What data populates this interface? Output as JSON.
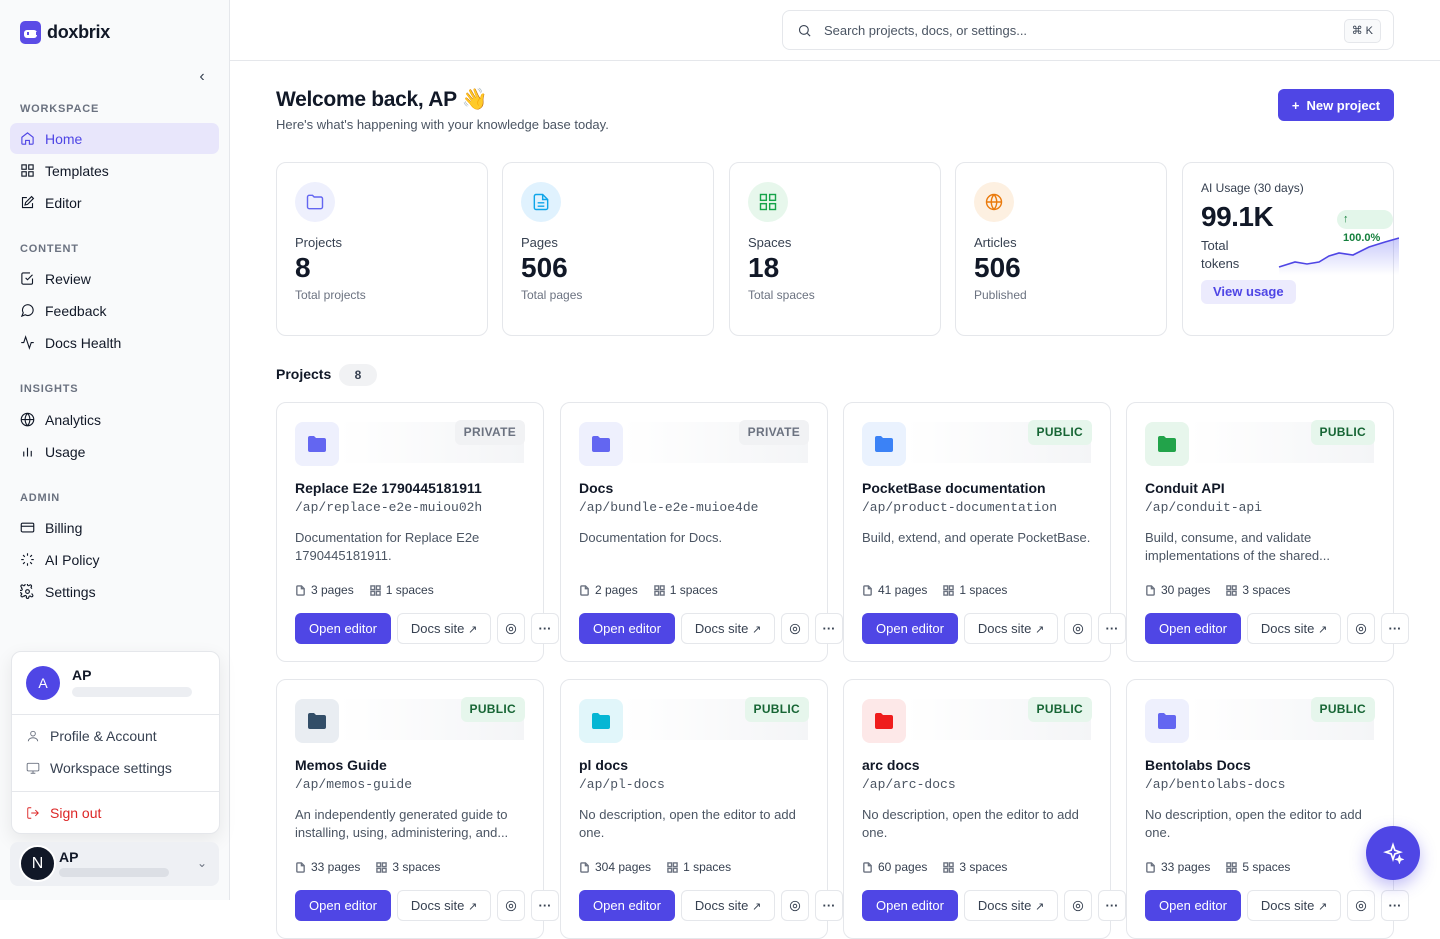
{
  "app": {
    "name": "doxbrix"
  },
  "sidebar": {
    "sections": [
      {
        "label": "WORKSPACE"
      },
      {
        "label": "CONTENT"
      },
      {
        "label": "INSIGHTS"
      },
      {
        "label": "ADMIN"
      }
    ],
    "items": [
      {
        "label": "Home",
        "icon": "home-icon",
        "active": true
      },
      {
        "label": "Templates",
        "icon": "grid-icon"
      },
      {
        "label": "Editor",
        "icon": "edit-icon"
      },
      {
        "label": "Review",
        "icon": "check-square-icon"
      },
      {
        "label": "Feedback",
        "icon": "message-circle-icon"
      },
      {
        "label": "Docs Health",
        "icon": "activity-icon"
      },
      {
        "label": "Analytics",
        "icon": "globe-icon"
      },
      {
        "label": "Usage",
        "icon": "bar-chart-icon"
      },
      {
        "label": "Billing",
        "icon": "credit-card-icon"
      },
      {
        "label": "AI Policy",
        "icon": "sparkle-icon"
      },
      {
        "label": "Settings",
        "icon": "gear-icon"
      }
    ]
  },
  "user_menu": {
    "avatar_letter": "A",
    "name": "AP",
    "items": [
      {
        "label": "Profile & Account",
        "icon": "user-icon"
      },
      {
        "label": "Workspace settings",
        "icon": "monitor-icon"
      }
    ],
    "signout": "Sign out"
  },
  "user_bar": {
    "avatar_letter": "N",
    "name": "AP"
  },
  "search": {
    "placeholder": "Search projects, docs, or settings...",
    "shortcut": "⌘ K"
  },
  "header": {
    "title": "Welcome back, AP 👋",
    "subtitle": "Here's what's happening with your knowledge base today.",
    "new_project": "New project"
  },
  "stats": [
    {
      "label": "Projects",
      "value": "8",
      "desc": "Total projects",
      "color": "#6366f1",
      "bg": "#eef0fd",
      "icon": "folder-icon"
    },
    {
      "label": "Pages",
      "value": "506",
      "desc": "Total pages",
      "color": "#0ea5e9",
      "bg": "#e0f2fe",
      "icon": "file-text-icon"
    },
    {
      "label": "Spaces",
      "value": "18",
      "desc": "Total spaces",
      "color": "#16a34a",
      "bg": "#e7f7ec",
      "icon": "grid-icon"
    },
    {
      "label": "Articles",
      "value": "506",
      "desc": "Published",
      "color": "#ea7a0c",
      "bg": "#fdf0e1",
      "icon": "globe-icon"
    }
  ],
  "ai_usage": {
    "title": "AI Usage (30 days)",
    "value": "99.1K",
    "label": "Total tokens",
    "change": "100.0%",
    "action": "View usage"
  },
  "projects": {
    "title": "Projects",
    "count": "8",
    "open_label": "Open editor",
    "docs_label": "Docs site",
    "items": [
      {
        "name": "Replace E2e 1790445181911",
        "slug": "/ap/replace-e2e-muiou02h",
        "description": "Documentation for Replace E2e 1790445181911.",
        "pages": "3 pages",
        "spaces": "1 spaces",
        "visibility": "PRIVATE",
        "color": "#6366f1",
        "bg": "#eef0fd"
      },
      {
        "name": "Docs",
        "slug": "/ap/bundle-e2e-muioe4de",
        "description": "Documentation for Docs.",
        "pages": "2 pages",
        "spaces": "1 spaces",
        "visibility": "PRIVATE",
        "color": "#6366f1",
        "bg": "#eef0fd"
      },
      {
        "name": "PocketBase documentation",
        "slug": "/ap/product-documentation",
        "description": "Build, extend, and operate PocketBase.",
        "pages": "41 pages",
        "spaces": "1 spaces",
        "visibility": "PUBLIC",
        "color": "#3b82f6",
        "bg": "#eaf2fe"
      },
      {
        "name": "Conduit API",
        "slug": "/ap/conduit-api",
        "description": "Build, consume, and validate implementations of the shared...",
        "pages": "30 pages",
        "spaces": "3 spaces",
        "visibility": "PUBLIC",
        "color": "#22a34a",
        "bg": "#e7f6ec"
      },
      {
        "name": "Memos Guide",
        "slug": "/ap/memos-guide",
        "description": "An independently generated guide to installing, using, administering, and...",
        "pages": "33 pages",
        "spaces": "3 spaces",
        "visibility": "PUBLIC",
        "color": "#334e68",
        "bg": "#e9edf2"
      },
      {
        "name": "pl docs",
        "slug": "/ap/pl-docs",
        "description": "No description, open the editor to add one.",
        "pages": "304 pages",
        "spaces": "1 spaces",
        "visibility": "PUBLIC",
        "color": "#06b6d4",
        "bg": "#e1f6fa"
      },
      {
        "name": "arc docs",
        "slug": "/ap/arc-docs",
        "description": "No description, open the editor to add one.",
        "pages": "60 pages",
        "spaces": "3 spaces",
        "visibility": "PUBLIC",
        "color": "#ef1c1c",
        "bg": "#fde8e8"
      },
      {
        "name": "Bentolabs Docs",
        "slug": "/ap/bentolabs-docs",
        "description": "No description, open the editor to add one.",
        "pages": "33 pages",
        "spaces": "5 spaces",
        "visibility": "PUBLIC",
        "color": "#6366f1",
        "bg": "#eef0fd"
      }
    ]
  }
}
